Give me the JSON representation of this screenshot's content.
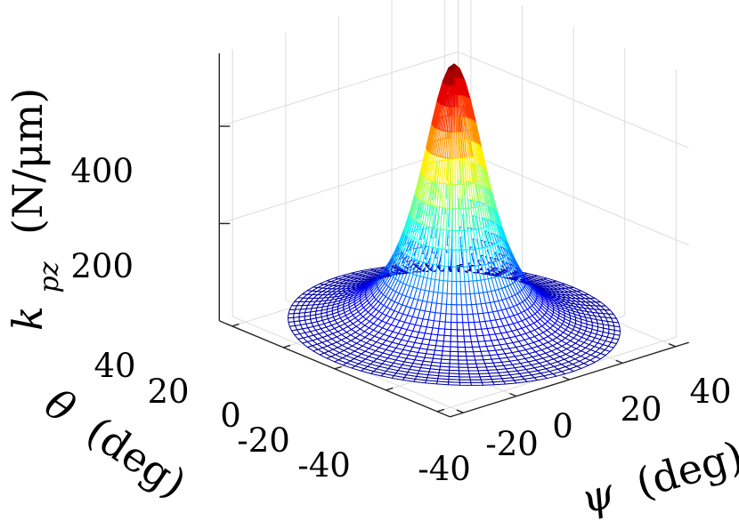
{
  "chart_data": {
    "type": "surface",
    "zlabel": "k_pz (N/μm)",
    "xlabel": "ψ (deg)",
    "ylabel": "θ (deg)",
    "x_ticks": [
      -40,
      -20,
      0,
      20,
      40
    ],
    "y_ticks": [
      -40,
      -20,
      0,
      20,
      40
    ],
    "z_ticks": [
      200,
      400
    ],
    "xlim": [
      -45,
      45
    ],
    "ylim": [
      -45,
      45
    ],
    "zlim": [
      0,
      550
    ],
    "grid": true,
    "colormap": "jet",
    "domain_radius_deg": 45,
    "mesh": {
      "radial_divisions": 30,
      "angular_divisions": 90
    },
    "z_function": {
      "form": "a / (1 + (r/c)^2)^p",
      "a": 550,
      "c": 14,
      "p": 1.5
    }
  },
  "labels": {
    "zlabel_main": "k",
    "zlabel_sub": "pz",
    "zlabel_units": "(N/μm)",
    "xlabel_symbol": "ψ",
    "xlabel_units": "(deg)",
    "ylabel_symbol": "θ",
    "ylabel_units": "(deg)"
  },
  "ticks": {
    "z_200": "200",
    "z_400": "400",
    "x_m40": "-40",
    "x_m20": "-20",
    "x_0": "0",
    "x_20": "20",
    "x_40": "40",
    "y_40": "40",
    "y_20": "20",
    "y_0": "0",
    "y_m20": "-20",
    "y_m40": "-40"
  }
}
